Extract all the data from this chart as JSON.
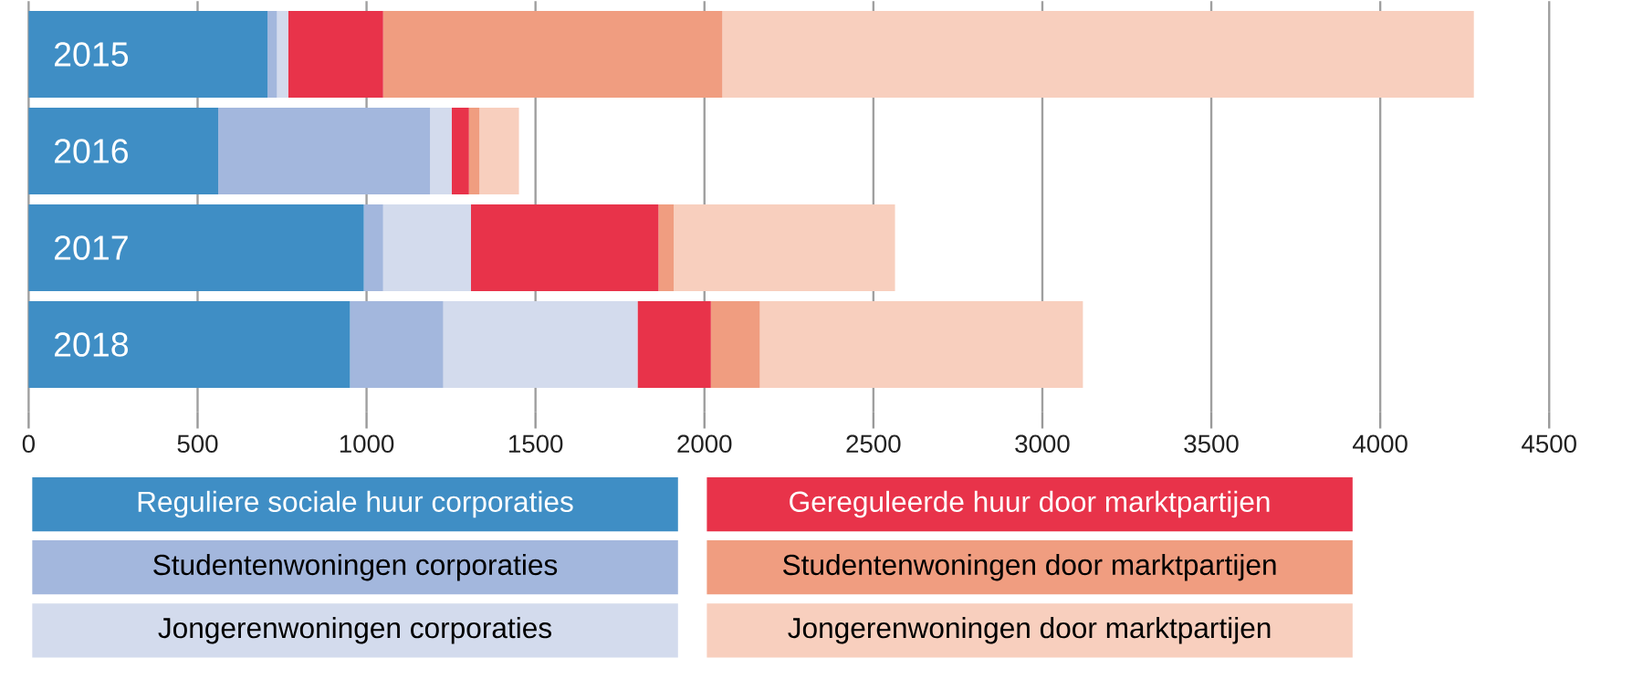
{
  "chart_data": {
    "type": "bar",
    "orientation": "horizontal",
    "stacked": true,
    "categories": [
      "2015",
      "2016",
      "2017",
      "2018"
    ],
    "series": [
      {
        "name": "Reguliere sociale huur corporaties",
        "color": "#3f8ec5",
        "values": [
          707,
          561,
          992,
          951
        ]
      },
      {
        "name": "Studentenwoningen corporaties",
        "color": "#a3b7dd",
        "values": [
          28,
          627,
          57,
          276
        ]
      },
      {
        "name": "Jongerenwoningen corporaties",
        "color": "#d3dbed",
        "values": [
          33,
          64,
          260,
          575
        ]
      },
      {
        "name": "Gereguleerde huur door marktpartijen",
        "color": "#e8334a",
        "values": [
          281,
          51,
          555,
          217
        ]
      },
      {
        "name": "Studentenwoningen door marktpartijen",
        "color": "#f09d80",
        "values": [
          1004,
          31,
          45,
          145
        ]
      },
      {
        "name": "Jongerenwoningen door marktpartijen",
        "color": "#f8cfbe",
        "values": [
          2224,
          117,
          655,
          956
        ]
      }
    ],
    "xlim": [
      0,
      4500
    ],
    "xticks": [
      0,
      500,
      1000,
      1500,
      2000,
      2500,
      3000,
      3500,
      4000,
      4500
    ],
    "grid": "x",
    "legend": "bottom"
  }
}
